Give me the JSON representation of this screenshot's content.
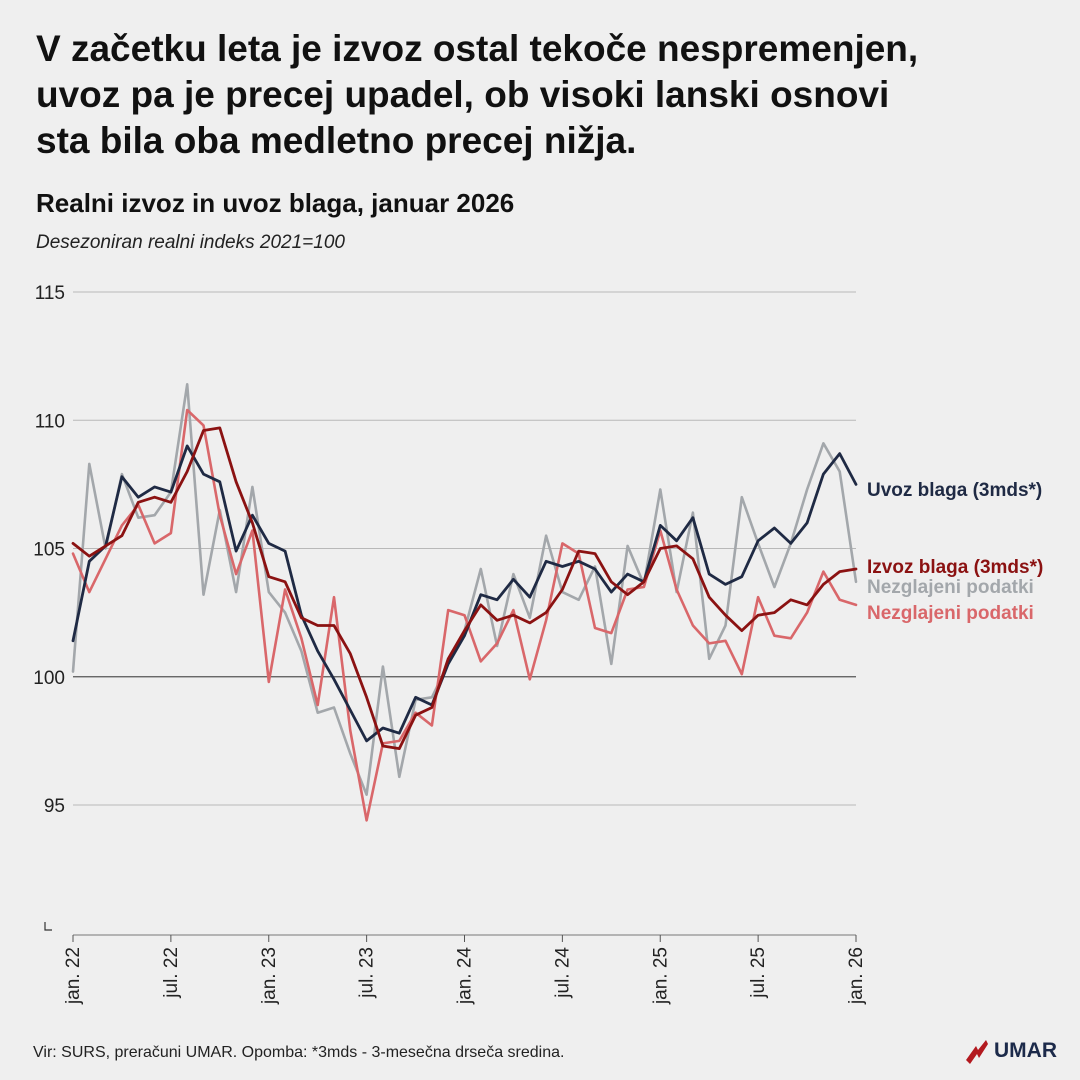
{
  "headline": [
    "V začetku leta je izvoz ostal tekoče nespremenjen,",
    "uvoz pa je precej upadel, ob visoki lanski osnovi",
    "sta bila oba medletno precej nižja."
  ],
  "footer": {
    "source": "Vir: SURS, preračuni UMAR. Opomba: *3mds - 3-mesečna drseča sredina.",
    "logo_text": "UMAR"
  },
  "colors": {
    "import_3m": "#1f2a44",
    "export_3m": "#8b1212",
    "import_raw": "#a3a7ab",
    "export_raw": "#d9676a",
    "grid": "#b8b8b8",
    "baseline": "#555555",
    "logo_red": "#b3191f"
  },
  "chart_data": {
    "type": "line",
    "title": "Realni izvoz in uvoz blaga, januar 2026",
    "subtitle": "Desezoniran realni indeks 2021=100",
    "ylim": [
      92,
      115
    ],
    "yticks": [
      95,
      100,
      105,
      110,
      115
    ],
    "grid": true,
    "legend": "right-end-labels",
    "x_tick_labels": [
      "jan. 22",
      "jul. 22",
      "jan. 23",
      "jul. 23",
      "jan. 24",
      "jul. 24",
      "jan. 25",
      "jul. 25",
      "jan. 26"
    ],
    "x_tick_positions": [
      0,
      6,
      12,
      18,
      24,
      30,
      36,
      42,
      48
    ],
    "x": [
      "2022-01",
      "2022-02",
      "2022-03",
      "2022-04",
      "2022-05",
      "2022-06",
      "2022-07",
      "2022-08",
      "2022-09",
      "2022-10",
      "2022-11",
      "2022-12",
      "2023-01",
      "2023-02",
      "2023-03",
      "2023-04",
      "2023-05",
      "2023-06",
      "2023-07",
      "2023-08",
      "2023-09",
      "2023-10",
      "2023-11",
      "2023-12",
      "2024-01",
      "2024-02",
      "2024-03",
      "2024-04",
      "2024-05",
      "2024-06",
      "2024-07",
      "2024-08",
      "2024-09",
      "2024-10",
      "2024-11",
      "2024-12",
      "2025-01",
      "2025-02",
      "2025-03",
      "2025-04",
      "2025-05",
      "2025-06",
      "2025-07",
      "2025-08",
      "2025-09",
      "2025-10",
      "2025-11",
      "2025-12",
      "2026-01"
    ],
    "series": [
      {
        "name": "Nezgljajeni podatki",
        "key": "import_raw",
        "values": [
          100.2,
          108.3,
          105.0,
          107.9,
          106.2,
          106.3,
          107.2,
          111.4,
          103.2,
          106.5,
          103.3,
          107.4,
          103.3,
          102.5,
          101.0,
          98.6,
          98.8,
          97.0,
          95.4,
          100.4,
          96.1,
          99.1,
          99.2,
          100.5,
          101.8,
          104.2,
          101.2,
          104.0,
          102.3,
          105.5,
          103.3,
          103.0,
          104.3,
          100.5,
          105.1,
          103.6,
          107.3,
          103.3,
          106.4,
          100.7,
          102.0,
          107.0,
          105.2,
          103.5,
          105.2,
          107.3,
          109.1,
          108.0,
          103.7
        ]
      },
      {
        "name": "Nezgljajeni podatki",
        "key": "export_raw",
        "values": [
          104.8,
          103.3,
          104.6,
          105.9,
          106.7,
          105.2,
          105.6,
          110.4,
          109.8,
          106.3,
          104.0,
          105.7,
          99.8,
          103.4,
          101.5,
          98.9,
          103.1,
          97.9,
          94.4,
          97.4,
          97.5,
          98.6,
          98.1,
          102.6,
          102.4,
          100.6,
          101.3,
          102.6,
          99.9,
          102.2,
          105.2,
          104.8,
          101.9,
          101.7,
          103.4,
          103.5,
          105.7,
          103.4,
          102.0,
          101.3,
          101.4,
          100.1,
          103.1,
          101.6,
          101.5,
          102.5,
          104.1,
          103.0,
          102.8
        ]
      },
      {
        "name": "Uvoz blaga (3mds*)",
        "key": "import_3m",
        "values": [
          101.4,
          104.5,
          105.1,
          107.8,
          107.0,
          107.4,
          107.2,
          109.0,
          107.9,
          107.6,
          104.9,
          106.3,
          105.2,
          104.9,
          102.4,
          101.0,
          99.9,
          98.7,
          97.5,
          98.0,
          97.8,
          99.2,
          98.9,
          100.5,
          101.6,
          103.2,
          103.0,
          103.8,
          103.1,
          104.5,
          104.3,
          104.5,
          104.2,
          103.3,
          104.0,
          103.7,
          105.9,
          105.3,
          106.2,
          104.0,
          103.6,
          103.9,
          105.3,
          105.8,
          105.2,
          106.0,
          107.9,
          108.7,
          107.5
        ]
      },
      {
        "name": "Izvoz blaga (3mds*)",
        "key": "export_3m",
        "values": [
          105.2,
          104.7,
          105.1,
          105.5,
          106.8,
          107.0,
          106.8,
          108.0,
          109.6,
          109.7,
          107.6,
          106.0,
          103.9,
          103.7,
          102.3,
          102.0,
          102.0,
          100.9,
          99.2,
          97.3,
          97.2,
          98.5,
          98.8,
          100.7,
          101.8,
          102.8,
          102.2,
          102.4,
          102.1,
          102.5,
          103.4,
          104.9,
          104.8,
          103.7,
          103.2,
          103.7,
          105.0,
          105.1,
          104.6,
          103.1,
          102.4,
          101.8,
          102.4,
          102.5,
          103.0,
          102.8,
          103.6,
          104.1,
          104.2
        ]
      }
    ],
    "end_labels": [
      {
        "text": "Uvoz blaga (3mds*)",
        "color_key": "import_3m"
      },
      {
        "text": "Izvoz blaga (3mds*)",
        "color_key": "export_3m"
      },
      {
        "text": "Nezglajeni podatki",
        "color_key": "import_raw"
      },
      {
        "text": "Nezglajeni podatki",
        "color_key": "export_raw"
      }
    ]
  }
}
